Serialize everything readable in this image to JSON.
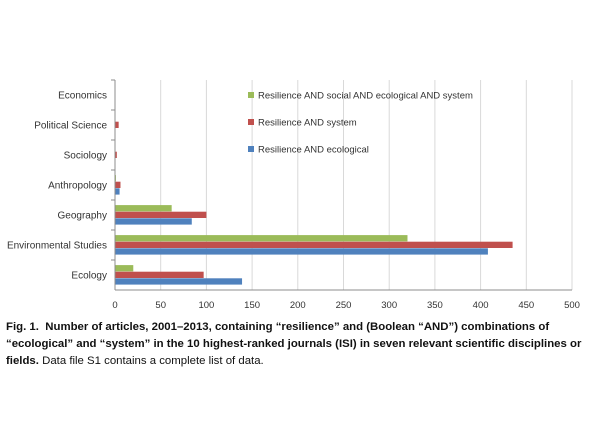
{
  "chart_data": {
    "type": "bar",
    "orientation": "horizontal",
    "categories": [
      "Economics",
      "Political Science",
      "Sociology",
      "Anthropology",
      "Geography",
      "Environmental Studies",
      "Ecology"
    ],
    "series": [
      {
        "name": "Resilience AND social AND ecological AND system",
        "color": "#9bbb59",
        "values": [
          0,
          0,
          0,
          1,
          62,
          320,
          20
        ]
      },
      {
        "name": "Resilience AND system",
        "color": "#c0504d",
        "values": [
          0,
          4,
          2,
          6,
          100,
          435,
          97
        ]
      },
      {
        "name": "Resilience AND ecological",
        "color": "#4f81bd",
        "values": [
          0,
          0,
          0,
          5,
          84,
          408,
          139
        ]
      }
    ],
    "xlim": [
      0,
      500
    ],
    "xticks": [
      "0",
      "50",
      "100",
      "150",
      "200",
      "250",
      "300",
      "350",
      "400",
      "450",
      "500"
    ],
    "grid": true,
    "legend_position": "top-right"
  },
  "caption": {
    "label": "Fig. 1.",
    "bold_text": "Number of articles, 2001–2013, containing “resilience” and (Boolean “AND”) combinations of “ecological” and “system” in the 10 highest-ranked journals (ISI) in seven relevant scientific disciplines or fields.",
    "rest_text": "Data file S1 contains a complete list of data."
  }
}
